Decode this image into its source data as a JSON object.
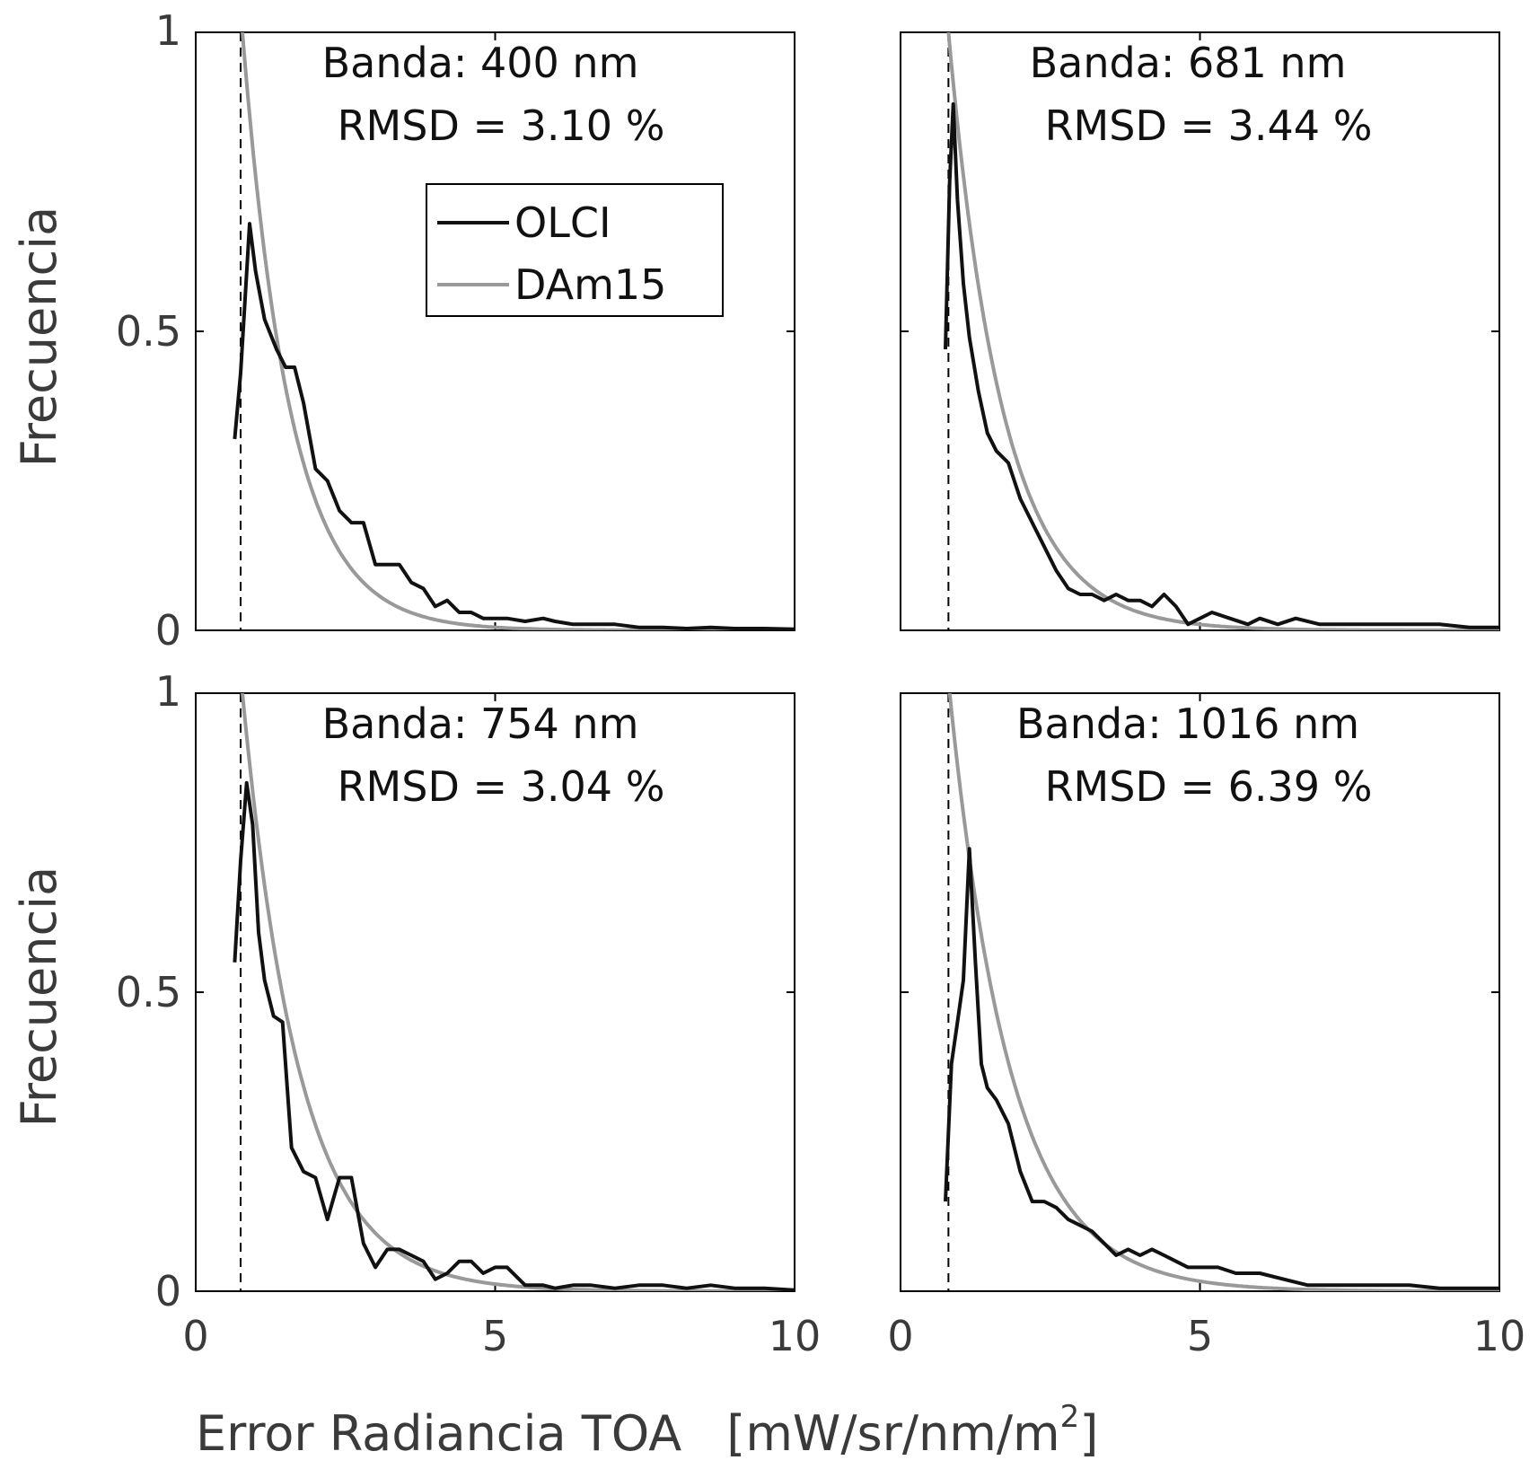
{
  "figure": {
    "ylabel": "Frecuencia",
    "xlabel": "Error Radiancia TOA",
    "xunit_main": "[mW/sr/nm/m",
    "xunit_sup": "2",
    "xunit_close": "]"
  },
  "legend": {
    "placement": "inside top panel 1, upper-middle",
    "entries": [
      {
        "name": "OLCI",
        "color": "#111111"
      },
      {
        "name": "DAm15",
        "color": "#999999"
      }
    ]
  },
  "colors": {
    "olci": "#111111",
    "dam15": "#999999",
    "axes": "#000000",
    "text": "#3a3a3a"
  },
  "chart_data": [
    {
      "type": "line",
      "title": "Banda: 400 nm",
      "annotation": "RMSD = 3.10 %",
      "xlim": [
        0,
        10
      ],
      "ylim": [
        0,
        1
      ],
      "xticks": [
        "0",
        "5",
        "10"
      ],
      "yticks": [
        "0",
        "0.5",
        "1"
      ],
      "vline_x": 0.75,
      "series": [
        {
          "name": "OLCI",
          "x": [
            0.65,
            0.75,
            0.9,
            1.0,
            1.15,
            1.35,
            1.5,
            1.65,
            1.8,
            2.0,
            2.2,
            2.4,
            2.6,
            2.8,
            3.0,
            3.2,
            3.4,
            3.6,
            3.8,
            4.0,
            4.2,
            4.4,
            4.6,
            4.8,
            5.0,
            5.2,
            5.5,
            5.8,
            6.0,
            6.3,
            6.6,
            7.0,
            7.4,
            7.8,
            8.2,
            8.6,
            9.0,
            9.5,
            10.0
          ],
          "y": [
            0.32,
            0.43,
            0.68,
            0.6,
            0.52,
            0.47,
            0.44,
            0.44,
            0.38,
            0.27,
            0.25,
            0.2,
            0.18,
            0.18,
            0.11,
            0.11,
            0.11,
            0.08,
            0.07,
            0.04,
            0.05,
            0.03,
            0.03,
            0.02,
            0.02,
            0.02,
            0.015,
            0.02,
            0.015,
            0.01,
            0.01,
            0.01,
            0.005,
            0.005,
            0.003,
            0.005,
            0.003,
            0.003,
            0.002
          ]
        },
        {
          "name": "DAm15",
          "x0": 0.78,
          "x1": 10,
          "a": 1.0,
          "k": 1.25
        }
      ]
    },
    {
      "type": "line",
      "title": "Banda: 681 nm",
      "annotation": "RMSD = 3.44 %",
      "xlim": [
        0,
        10
      ],
      "ylim": [
        0,
        1
      ],
      "xticks": [
        "0",
        "5",
        "10"
      ],
      "yticks": [
        "0",
        "0.5",
        "1"
      ],
      "vline_x": 0.8,
      "series": [
        {
          "name": "OLCI",
          "x": [
            0.75,
            0.82,
            0.88,
            0.95,
            1.05,
            1.15,
            1.3,
            1.45,
            1.6,
            1.8,
            2.0,
            2.2,
            2.4,
            2.6,
            2.8,
            3.0,
            3.2,
            3.4,
            3.6,
            3.8,
            4.0,
            4.2,
            4.4,
            4.6,
            4.8,
            5.0,
            5.2,
            5.5,
            5.8,
            6.0,
            6.3,
            6.6,
            7.0,
            7.4,
            7.8,
            8.2,
            8.6,
            9.0,
            9.5,
            10.0
          ],
          "y": [
            0.47,
            0.75,
            0.88,
            0.72,
            0.58,
            0.49,
            0.4,
            0.33,
            0.3,
            0.28,
            0.22,
            0.18,
            0.14,
            0.1,
            0.07,
            0.06,
            0.06,
            0.05,
            0.06,
            0.05,
            0.05,
            0.04,
            0.06,
            0.04,
            0.01,
            0.02,
            0.03,
            0.02,
            0.01,
            0.02,
            0.01,
            0.02,
            0.01,
            0.01,
            0.01,
            0.01,
            0.01,
            0.01,
            0.005,
            0.005
          ]
        },
        {
          "name": "DAm15",
          "x0": 0.8,
          "x1": 10,
          "a": 1.0,
          "k": 1.1
        }
      ]
    },
    {
      "type": "line",
      "title": "Banda: 754 nm",
      "annotation": "RMSD = 3.04 %",
      "xlim": [
        0,
        10
      ],
      "ylim": [
        0,
        1
      ],
      "xticks": [
        "0",
        "5",
        "10"
      ],
      "yticks": [
        "0",
        "0.5",
        "1"
      ],
      "vline_x": 0.75,
      "series": [
        {
          "name": "OLCI",
          "x": [
            0.65,
            0.75,
            0.85,
            0.95,
            1.05,
            1.15,
            1.3,
            1.45,
            1.6,
            1.8,
            2.0,
            2.2,
            2.4,
            2.6,
            2.8,
            3.0,
            3.2,
            3.4,
            3.6,
            3.8,
            4.0,
            4.2,
            4.4,
            4.6,
            4.8,
            5.0,
            5.2,
            5.5,
            5.8,
            6.0,
            6.3,
            6.6,
            7.0,
            7.4,
            7.8,
            8.2,
            8.6,
            9.0,
            9.5,
            10.0
          ],
          "y": [
            0.55,
            0.72,
            0.85,
            0.78,
            0.6,
            0.52,
            0.46,
            0.45,
            0.24,
            0.2,
            0.19,
            0.12,
            0.19,
            0.19,
            0.08,
            0.04,
            0.07,
            0.07,
            0.06,
            0.05,
            0.02,
            0.03,
            0.05,
            0.05,
            0.03,
            0.04,
            0.04,
            0.01,
            0.01,
            0.005,
            0.01,
            0.01,
            0.005,
            0.01,
            0.01,
            0.005,
            0.01,
            0.005,
            0.005,
            0.002
          ]
        },
        {
          "name": "DAm15",
          "x0": 0.78,
          "x1": 10,
          "a": 1.0,
          "k": 1.05
        }
      ]
    },
    {
      "type": "line",
      "title": "Banda: 1016 nm",
      "annotation": "RMSD = 6.39 %",
      "xlim": [
        0,
        10
      ],
      "ylim": [
        0,
        1
      ],
      "xticks": [
        "0",
        "5",
        "10"
      ],
      "yticks": [
        "0",
        "0.5",
        "1"
      ],
      "vline_x": 0.8,
      "series": [
        {
          "name": "OLCI",
          "x": [
            0.75,
            0.85,
            0.95,
            1.05,
            1.15,
            1.25,
            1.35,
            1.45,
            1.6,
            1.8,
            2.0,
            2.2,
            2.4,
            2.6,
            2.8,
            3.0,
            3.2,
            3.4,
            3.6,
            3.8,
            4.0,
            4.2,
            4.4,
            4.6,
            4.8,
            5.0,
            5.3,
            5.6,
            6.0,
            6.4,
            6.8,
            7.2,
            7.6,
            8.0,
            8.5,
            9.0,
            9.5,
            10.0
          ],
          "y": [
            0.15,
            0.38,
            0.45,
            0.52,
            0.74,
            0.55,
            0.38,
            0.34,
            0.32,
            0.28,
            0.2,
            0.15,
            0.15,
            0.14,
            0.12,
            0.11,
            0.1,
            0.08,
            0.06,
            0.07,
            0.06,
            0.07,
            0.06,
            0.05,
            0.04,
            0.04,
            0.04,
            0.03,
            0.03,
            0.02,
            0.01,
            0.01,
            0.01,
            0.01,
            0.01,
            0.005,
            0.005,
            0.005
          ]
        },
        {
          "name": "DAm15",
          "x0": 0.82,
          "x1": 10,
          "a": 1.0,
          "k": 0.98
        }
      ]
    }
  ]
}
